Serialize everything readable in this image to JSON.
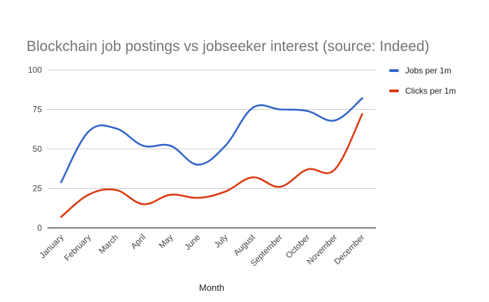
{
  "chart_data": {
    "type": "line",
    "title": "Blockchain job postings vs jobseeker interest (source: Indeed)",
    "xlabel": "Month",
    "ylabel": "",
    "categories": [
      "January",
      "February",
      "March",
      "April",
      "May",
      "June",
      "July",
      "August",
      "September",
      "October",
      "November",
      "December"
    ],
    "yticks": [
      "0",
      "25",
      "50",
      "75",
      "100"
    ],
    "ylim": [
      0,
      100
    ],
    "grid": true,
    "legend_position": "right",
    "series": [
      {
        "name": "Jobs per 1m",
        "color": "#3366cc",
        "values": [
          29,
          61,
          63,
          52,
          52,
          40,
          52,
          76,
          75,
          74,
          68,
          82
        ]
      },
      {
        "name": "Clicks per 1m",
        "color": "#dc3912",
        "values": [
          7,
          21,
          24,
          15,
          21,
          19,
          23,
          32,
          26,
          37,
          37,
          72
        ]
      }
    ]
  }
}
